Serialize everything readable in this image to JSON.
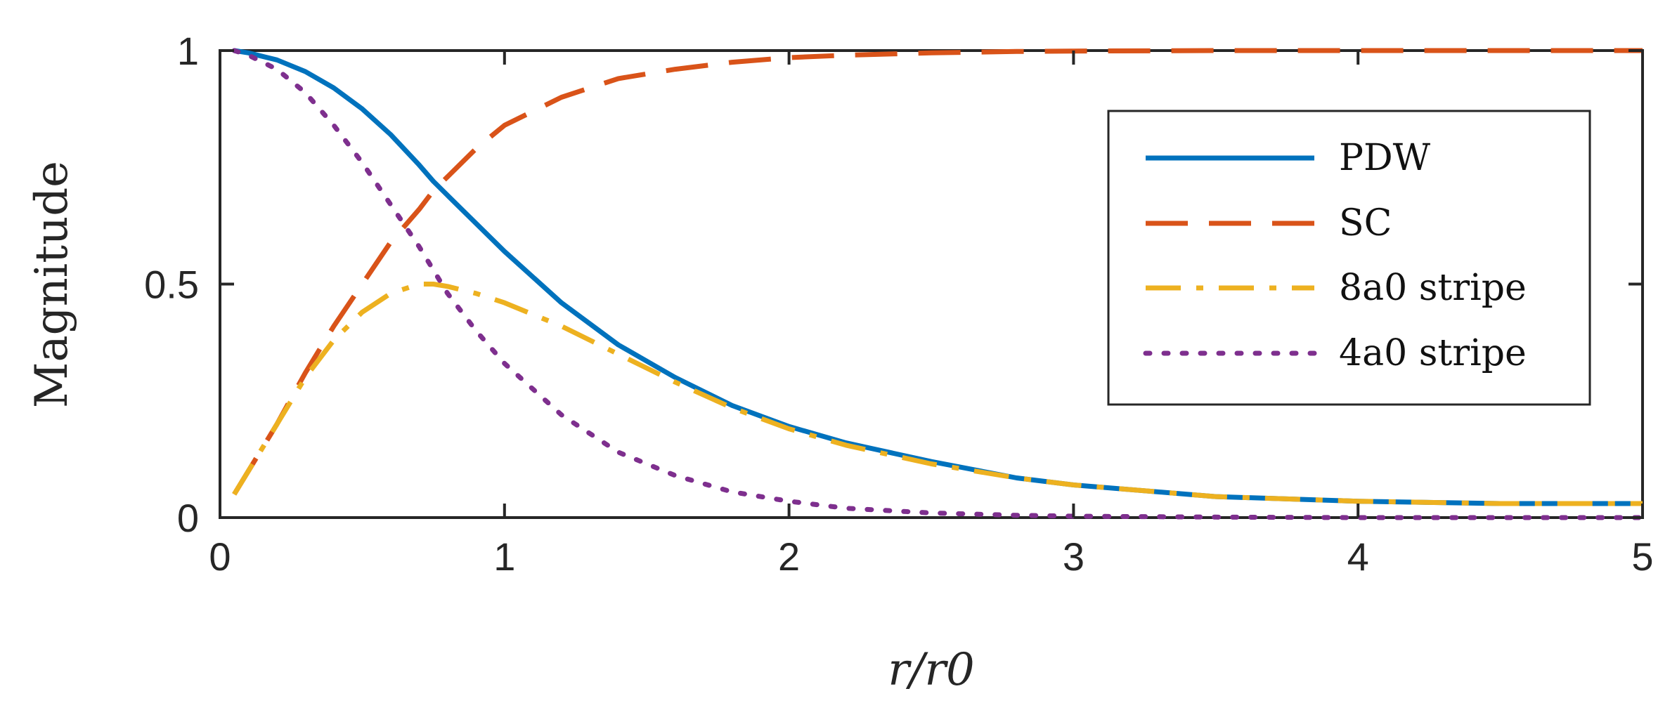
{
  "chart_data": {
    "type": "line",
    "title": "",
    "xlabel": "r/r0",
    "ylabel": "Magnitude",
    "xlim": [
      0,
      5
    ],
    "ylim": [
      0,
      1
    ],
    "xticks": [
      "0",
      "1",
      "2",
      "3",
      "4",
      "5"
    ],
    "yticks": [
      "0",
      "0.5",
      "1"
    ],
    "grid": false,
    "legend_position": "top-right",
    "x": [
      0.05,
      0.1,
      0.2,
      0.3,
      0.4,
      0.5,
      0.6,
      0.7,
      0.75,
      0.8,
      0.9,
      1.0,
      1.2,
      1.4,
      1.6,
      1.8,
      2.0,
      2.2,
      2.5,
      2.8,
      3.0,
      3.5,
      4.0,
      4.5,
      5.0
    ],
    "series": [
      {
        "name": "PDW",
        "color": "#0072BD",
        "dash": "solid",
        "values": [
          1.0,
          0.995,
          0.98,
          0.955,
          0.92,
          0.875,
          0.82,
          0.755,
          0.72,
          0.69,
          0.63,
          0.57,
          0.46,
          0.37,
          0.3,
          0.24,
          0.195,
          0.16,
          0.12,
          0.085,
          0.07,
          0.045,
          0.035,
          0.03,
          0.03
        ]
      },
      {
        "name": "SC",
        "color": "#D95319",
        "dash": "dashed",
        "values": [
          0.05,
          0.1,
          0.2,
          0.31,
          0.41,
          0.5,
          0.59,
          0.66,
          0.7,
          0.73,
          0.79,
          0.84,
          0.9,
          0.94,
          0.96,
          0.975,
          0.985,
          0.99,
          0.995,
          0.998,
          0.999,
          1.0,
          1.0,
          1.0,
          1.0
        ]
      },
      {
        "name": "8a0 stripe",
        "color": "#EDB120",
        "dash": "dashdot",
        "values": [
          0.05,
          0.1,
          0.2,
          0.3,
          0.38,
          0.44,
          0.48,
          0.5,
          0.5,
          0.495,
          0.48,
          0.46,
          0.41,
          0.35,
          0.29,
          0.235,
          0.19,
          0.155,
          0.115,
          0.085,
          0.07,
          0.045,
          0.035,
          0.03,
          0.03
        ]
      },
      {
        "name": "4a0 stripe",
        "color": "#7E2F8E",
        "dash": "dotted",
        "values": [
          1.0,
          0.99,
          0.96,
          0.91,
          0.84,
          0.76,
          0.67,
          0.58,
          0.53,
          0.48,
          0.4,
          0.33,
          0.22,
          0.14,
          0.09,
          0.055,
          0.035,
          0.02,
          0.01,
          0.005,
          0.003,
          0.001,
          0.0,
          0.0,
          0.0
        ]
      }
    ]
  }
}
